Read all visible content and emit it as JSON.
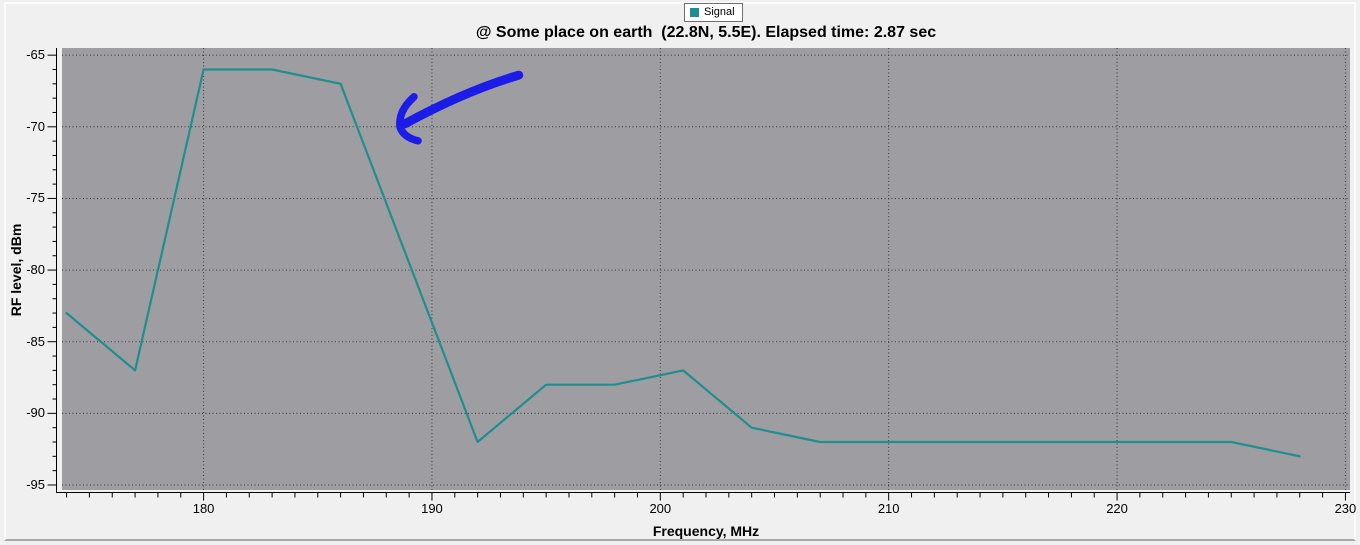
{
  "chart_data": {
    "type": "line",
    "title": "@ Some place on earth  (22.8N, 5.5E). Elapsed time: 2.87 sec",
    "xlabel": "Frequency, MHz",
    "ylabel": "RF level, dBm",
    "xlim": [
      173.8,
      230.2
    ],
    "ylim": [
      -95.35,
      -64.5
    ],
    "x_ticks_major": [
      180,
      190,
      200,
      210,
      220,
      230
    ],
    "y_ticks_major": [
      -65,
      -70,
      -75,
      -80,
      -85,
      -90,
      -95
    ],
    "x_tick_minor_step": 1,
    "y_tick_minor_step": 1,
    "grid": "dotted-major-both",
    "legend_position": "top-center",
    "plot_bg": "#9e9ea2",
    "series": [
      {
        "name": "Signal",
        "color": "#1f8e8e",
        "points": [
          [
            174,
            -83
          ],
          [
            177,
            -87
          ],
          [
            180,
            -66
          ],
          [
            183,
            -66
          ],
          [
            186,
            -67
          ],
          [
            192,
            -92
          ],
          [
            195,
            -88
          ],
          [
            198,
            -88
          ],
          [
            201,
            -87
          ],
          [
            204,
            -91
          ],
          [
            207,
            -92
          ],
          [
            225,
            -92
          ],
          [
            228,
            -93
          ]
        ]
      }
    ],
    "annotation": {
      "type": "hand-drawn-arrow",
      "color": "#1c1ce8",
      "tail": {
        "x": 193.8,
        "y": -66.4
      },
      "tip": {
        "x": 188.6,
        "y": -70.0
      }
    }
  }
}
